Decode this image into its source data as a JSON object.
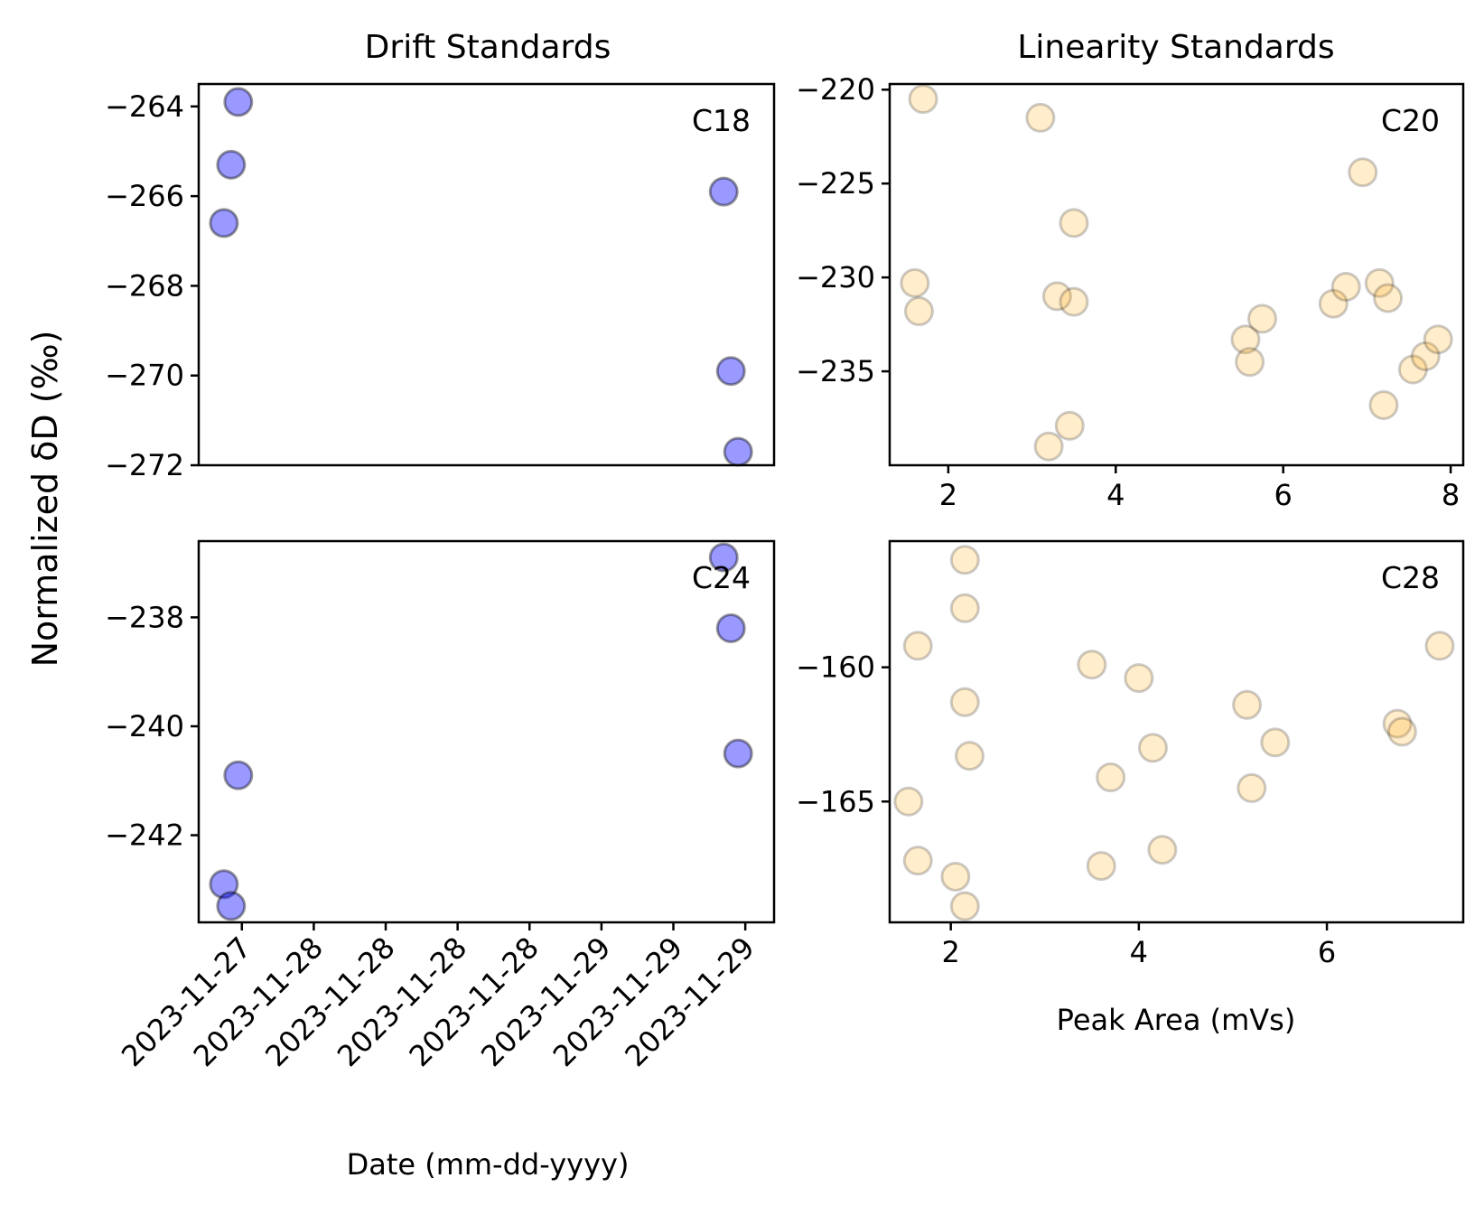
{
  "figure": {
    "ylabel": "Normalized δD (‰)",
    "titles": {
      "left": "Drift Standards",
      "right": "Linearity Standards"
    },
    "xlabels": {
      "left": "Date (mm-dd-yyyy)",
      "right": "Peak Area (mVs)"
    }
  },
  "colors": {
    "drift_marker": "#0000ff",
    "linearity_marker": "#ffa500",
    "marker_edge": "#000000",
    "axes": "#000000"
  },
  "chart_data": [
    {
      "id": "c18-drift",
      "type": "scatter",
      "panel": "top-left",
      "label": "C18",
      "xlim": [
        0,
        8.0
      ],
      "ylim": [
        -272.0,
        -263.5
      ],
      "yticks": [
        -264,
        -266,
        -268,
        -270,
        -272
      ],
      "ytick_labels": [
        "−264",
        "−266",
        "−268",
        "−270",
        "−272"
      ],
      "xticks": [],
      "marker_color": "#0000ff",
      "marker_alpha": 0.4,
      "x": [
        0.35,
        0.45,
        0.55,
        7.3,
        7.4,
        7.5
      ],
      "y": [
        -266.6,
        -265.3,
        -263.9,
        -265.9,
        -269.9,
        -271.7
      ]
    },
    {
      "id": "c20-linearity",
      "type": "scatter",
      "panel": "top-right",
      "label": "C20",
      "xlim": [
        1.3,
        8.15
      ],
      "ylim": [
        -240.0,
        -219.7
      ],
      "yticks": [
        -220,
        -225,
        -230,
        -235
      ],
      "ytick_labels": [
        "−220",
        "−225",
        "−230",
        "−235"
      ],
      "xticks": [
        2,
        4,
        6,
        8
      ],
      "xtick_labels": [
        "2",
        "4",
        "6",
        "8"
      ],
      "marker_color": "#ffa500",
      "marker_alpha": 0.2,
      "x": [
        1.7,
        1.6,
        1.65,
        3.1,
        3.5,
        3.3,
        3.5,
        3.45,
        3.2,
        5.55,
        5.75,
        5.6,
        6.6,
        6.75,
        6.95,
        7.15,
        7.25,
        7.2,
        7.55,
        7.7,
        7.85
      ],
      "y": [
        -220.5,
        -230.3,
        -231.8,
        -221.5,
        -227.1,
        -231.0,
        -231.3,
        -237.9,
        -239.0,
        -233.3,
        -232.2,
        -234.5,
        -231.4,
        -230.5,
        -224.4,
        -230.3,
        -231.1,
        -236.8,
        -234.9,
        -234.2,
        -233.3
      ]
    },
    {
      "id": "c24-drift",
      "type": "scatter",
      "panel": "bottom-left",
      "label": "C24",
      "xlim": [
        0,
        8.0
      ],
      "ylim": [
        -243.6,
        -236.6
      ],
      "yticks": [
        -238,
        -240,
        -242
      ],
      "ytick_labels": [
        "−238",
        "−240",
        "−242"
      ],
      "xticks": [
        0.6,
        1.6,
        2.6,
        3.6,
        4.6,
        5.6,
        6.6,
        7.6
      ],
      "xtick_labels": [
        "2023-11-27",
        "2023-11-28",
        "2023-11-28",
        "2023-11-28",
        "2023-11-28",
        "2023-11-29",
        "2023-11-29",
        "2023-11-29"
      ],
      "marker_color": "#0000ff",
      "marker_alpha": 0.4,
      "x": [
        0.35,
        0.45,
        0.55,
        7.3,
        7.4,
        7.5
      ],
      "y": [
        -242.9,
        -243.3,
        -240.9,
        -236.9,
        -238.2,
        -240.5
      ]
    },
    {
      "id": "c28-linearity",
      "type": "scatter",
      "panel": "bottom-right",
      "label": "C28",
      "xlim": [
        1.35,
        7.45
      ],
      "ylim": [
        -169.5,
        -155.3
      ],
      "yticks": [
        -160,
        -165
      ],
      "ytick_labels": [
        "−160",
        "−165"
      ],
      "xticks": [
        2,
        4,
        6
      ],
      "xtick_labels": [
        "2",
        "4",
        "6"
      ],
      "marker_color": "#ffa500",
      "marker_alpha": 0.2,
      "x": [
        1.65,
        1.55,
        1.65,
        2.15,
        2.15,
        2.15,
        2.2,
        2.05,
        2.15,
        3.5,
        4.0,
        4.15,
        3.7,
        3.6,
        4.25,
        5.15,
        5.45,
        5.2,
        6.75,
        6.8,
        7.2
      ],
      "y": [
        -159.2,
        -165.0,
        -167.2,
        -156.0,
        -157.8,
        -161.3,
        -163.3,
        -167.8,
        -168.9,
        -159.9,
        -160.4,
        -163.0,
        -164.1,
        -167.4,
        -166.8,
        -161.4,
        -162.8,
        -164.5,
        -162.1,
        -162.4,
        -159.2
      ]
    }
  ]
}
